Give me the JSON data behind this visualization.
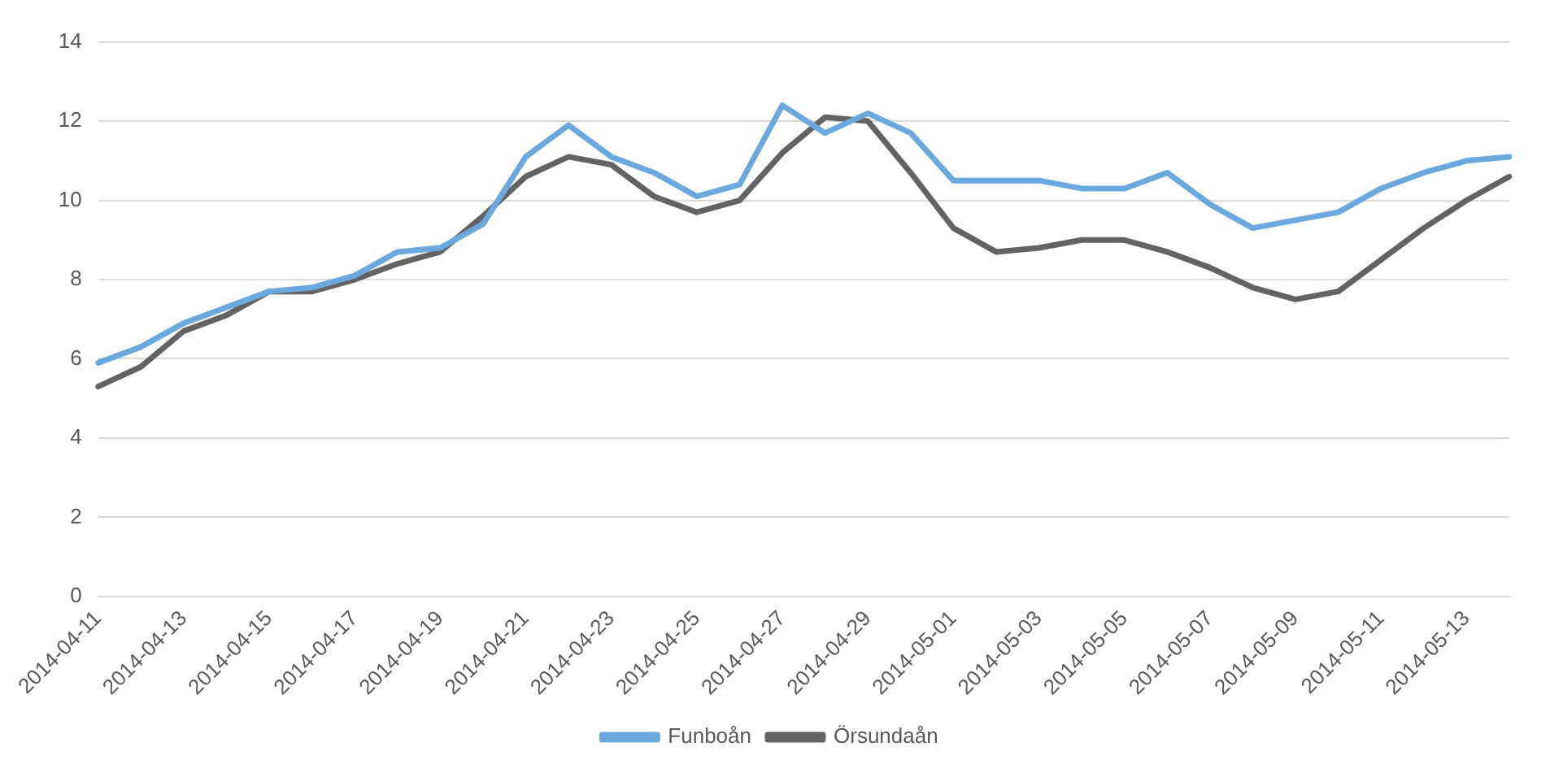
{
  "chart_data": {
    "type": "line",
    "categories": [
      "2014-04-11",
      null,
      "2014-04-13",
      null,
      "2014-04-15",
      null,
      "2014-04-17",
      null,
      "2014-04-19",
      null,
      "2014-04-21",
      null,
      "2014-04-23",
      null,
      "2014-04-25",
      null,
      "2014-04-27",
      null,
      "2014-04-29",
      null,
      "2014-05-01",
      null,
      "2014-05-03",
      null,
      "2014-05-05",
      null,
      "2014-05-07",
      null,
      "2014-05-09",
      null,
      "2014-05-11",
      null,
      "2014-05-13",
      null
    ],
    "series": [
      {
        "name": "Funboån",
        "color": "#6aa8de",
        "values": [
          5.9,
          6.3,
          6.9,
          7.3,
          7.7,
          7.8,
          8.1,
          8.7,
          8.8,
          9.4,
          11.1,
          11.9,
          11.1,
          10.7,
          10.1,
          10.4,
          12.4,
          11.7,
          12.2,
          11.7,
          10.5,
          10.5,
          10.5,
          10.3,
          10.3,
          10.7,
          9.9,
          9.3,
          9.5,
          9.7,
          10.3,
          10.7,
          11.0,
          11.1
        ]
      },
      {
        "name": "Örsundaån",
        "color": "#636363",
        "values": [
          5.3,
          5.8,
          6.7,
          7.1,
          7.7,
          7.7,
          8.0,
          8.4,
          8.7,
          9.6,
          10.6,
          11.1,
          10.9,
          10.1,
          9.7,
          10.0,
          11.2,
          12.1,
          12.0,
          10.7,
          9.3,
          8.7,
          8.8,
          9.0,
          9.0,
          8.7,
          8.3,
          7.8,
          7.5,
          7.7,
          8.5,
          9.3,
          10.0,
          10.6
        ]
      }
    ],
    "ylim": [
      0,
      14
    ],
    "yticks": [
      0,
      2,
      4,
      6,
      8,
      10,
      12,
      14
    ],
    "grid": "y",
    "legend": "bottom",
    "marker": "none",
    "line_style": "solid"
  }
}
